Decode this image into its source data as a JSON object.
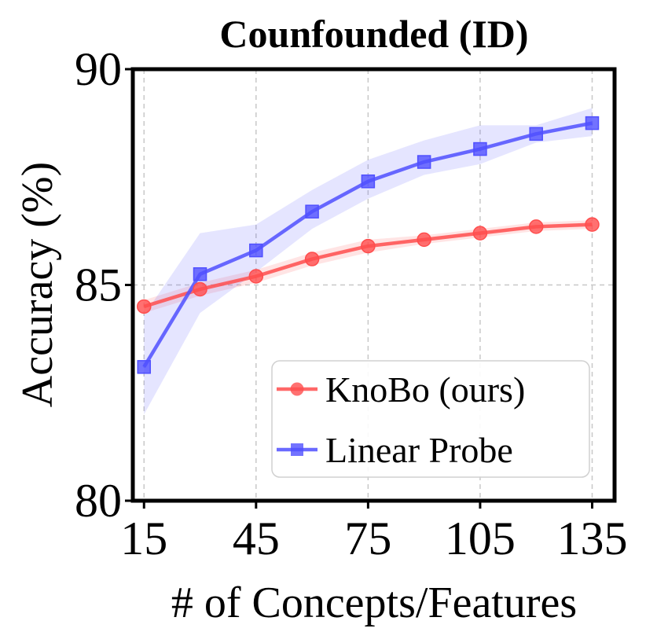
{
  "chart_data": {
    "type": "line",
    "title": "Counfounded (ID)",
    "xlabel": "# of Concepts/Features",
    "ylabel": "Accuracy (%)",
    "x": [
      15,
      30,
      45,
      60,
      75,
      90,
      105,
      120,
      135
    ],
    "xticks": [
      15,
      45,
      75,
      105,
      135
    ],
    "yticks": [
      80,
      85,
      90
    ],
    "xlim": [
      12,
      141
    ],
    "ylim": [
      80,
      90
    ],
    "grid": true,
    "legend_position": "lower-right",
    "series": [
      {
        "name": "KnoBo (ours)",
        "color": "#ff4d4d",
        "marker": "circle",
        "values": [
          84.5,
          84.9,
          85.2,
          85.6,
          85.9,
          86.05,
          86.2,
          86.35,
          86.4
        ],
        "lower": [
          84.35,
          84.75,
          85.05,
          85.45,
          85.75,
          85.95,
          86.1,
          86.25,
          86.3
        ],
        "upper": [
          84.65,
          85.05,
          85.35,
          85.75,
          86.05,
          86.15,
          86.3,
          86.45,
          86.5
        ]
      },
      {
        "name": "Linear Probe",
        "color": "#5050ff",
        "marker": "square",
        "values": [
          83.1,
          85.25,
          85.8,
          86.7,
          87.4,
          87.85,
          88.15,
          88.5,
          88.75
        ],
        "lower": [
          82.0,
          84.35,
          85.3,
          86.3,
          87.0,
          87.55,
          87.8,
          88.3,
          88.45
        ],
        "upper": [
          84.3,
          86.2,
          86.4,
          87.2,
          87.9,
          88.35,
          88.7,
          88.7,
          89.1
        ]
      }
    ]
  }
}
